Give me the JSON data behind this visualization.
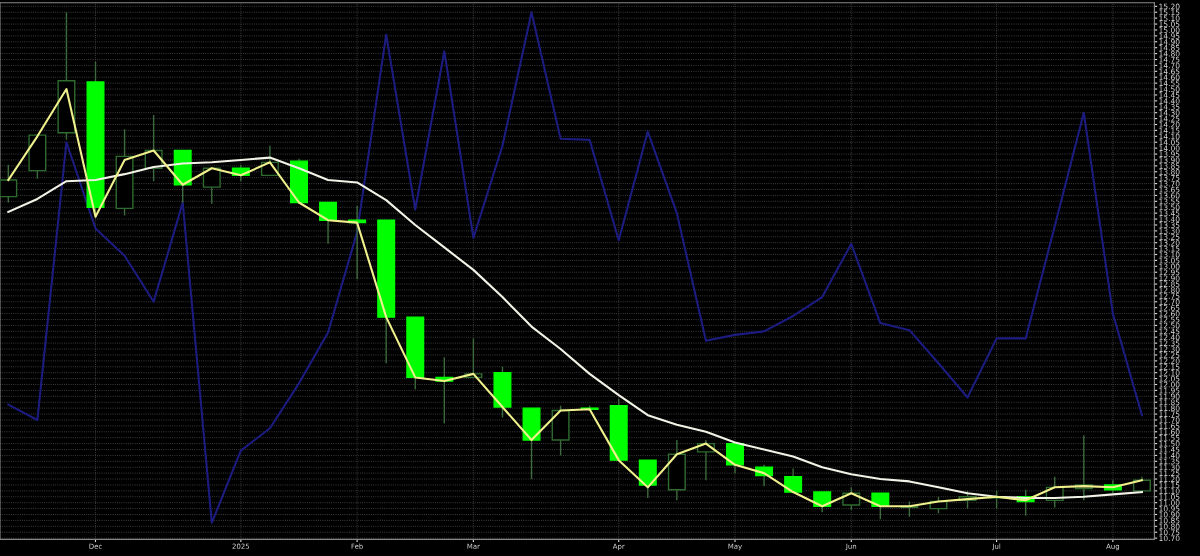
{
  "chart_data": {
    "type": "candlestick",
    "x": [
      "2024-11-11",
      "2024-11-18",
      "2024-11-25",
      "2024-12-02",
      "2024-12-09",
      "2024-12-16",
      "2024-12-23",
      "2024-12-30",
      "2025-01-06",
      "2025-01-13",
      "2025-01-20",
      "2025-01-27",
      "2025-02-03",
      "2025-02-10",
      "2025-02-17",
      "2025-02-24",
      "2025-03-03",
      "2025-03-10",
      "2025-03-17",
      "2025-03-24",
      "2025-03-31",
      "2025-04-07",
      "2025-04-14",
      "2025-04-21",
      "2025-04-28",
      "2025-05-05",
      "2025-05-12",
      "2025-05-19",
      "2025-05-26",
      "2025-06-02",
      "2025-06-09",
      "2025-06-16",
      "2025-06-23",
      "2025-06-30",
      "2025-07-07",
      "2025-07-14",
      "2025-07-21",
      "2025-07-28",
      "2025-08-04",
      "2025-08-11"
    ],
    "ohlc": [
      [
        13.59,
        13.86,
        13.54,
        13.73
      ],
      [
        13.81,
        14.12,
        13.74,
        14.11
      ],
      [
        14.13,
        15.15,
        14.07,
        14.57
      ],
      [
        14.56,
        14.73,
        13.41,
        13.5
      ],
      [
        13.49,
        14.16,
        13.43,
        13.93
      ],
      [
        13.83,
        14.28,
        13.72,
        13.98
      ],
      [
        13.98,
        13.98,
        13.54,
        13.69
      ],
      [
        13.67,
        13.84,
        13.53,
        13.83
      ],
      [
        13.83,
        13.86,
        13.72,
        13.77
      ],
      [
        13.77,
        14.02,
        13.77,
        13.88
      ],
      [
        13.89,
        13.91,
        13.53,
        13.54
      ],
      [
        13.54,
        13.54,
        13.19,
        13.39
      ],
      [
        13.39,
        13.51,
        12.89,
        13.37
      ],
      [
        13.39,
        13.39,
        12.18,
        12.57
      ],
      [
        12.57,
        12.57,
        11.96,
        12.06
      ],
      [
        12.06,
        12.23,
        11.67,
        12.03
      ],
      [
        12.06,
        12.39,
        12.06,
        12.09
      ],
      [
        12.1,
        12.15,
        11.72,
        11.81
      ],
      [
        11.8,
        11.8,
        11.2,
        11.53
      ],
      [
        11.53,
        11.82,
        11.4,
        11.78
      ],
      [
        11.8,
        11.82,
        11.78,
        11.79
      ],
      [
        11.82,
        11.88,
        11.36,
        11.36
      ],
      [
        11.36,
        11.36,
        11.04,
        11.15
      ],
      [
        11.11,
        11.53,
        11.02,
        11.41
      ],
      [
        11.43,
        11.53,
        11.19,
        11.5
      ],
      [
        11.5,
        11.5,
        11.25,
        11.32
      ],
      [
        11.3,
        11.32,
        11.14,
        11.23
      ],
      [
        11.22,
        11.29,
        11.08,
        11.09
      ],
      [
        11.09,
        11.09,
        10.92,
        10.97
      ],
      [
        10.98,
        11.13,
        10.94,
        11.08
      ],
      [
        11.08,
        11.08,
        10.86,
        10.97
      ],
      [
        10.96,
        11.01,
        10.88,
        10.97
      ],
      [
        10.95,
        11.05,
        10.91,
        11.01
      ],
      [
        11.02,
        11.1,
        10.95,
        11.05
      ],
      [
        11.04,
        11.1,
        10.95,
        11.05
      ],
      [
        11.05,
        11.11,
        10.89,
        11.01
      ],
      [
        11.02,
        11.22,
        10.96,
        11.13
      ],
      [
        11.12,
        11.57,
        11.02,
        11.15
      ],
      [
        11.15,
        11.19,
        11.08,
        11.11
      ],
      [
        11.1,
        11.22,
        11.08,
        11.19
      ]
    ],
    "colors": [
      "#2f6b2f",
      "#2f6b2f",
      "#2f6b2f",
      "#00ff00",
      "#2f6b2f",
      "#2f6b2f",
      "#00ff00",
      "#2f6b2f",
      "#00ff00",
      "#2f6b2f",
      "#00ff00",
      "#00ff00",
      "#00ff00",
      "#00ff00",
      "#00ff00",
      "#00ff00",
      "#2f6b2f",
      "#00ff00",
      "#00ff00",
      "#2f6b2f",
      "#00ff00",
      "#00ff00",
      "#00ff00",
      "#2f6b2f",
      "#2f6b2f",
      "#00ff00",
      "#00ff00",
      "#00ff00",
      "#00ff00",
      "#2f6b2f",
      "#00ff00",
      "#2f6b2f",
      "#2f6b2f",
      "#2f6b2f",
      "#2f6b2f",
      "#00ff00",
      "#2f6b2f",
      "#2f6b2f",
      "#00ff00",
      "#2f6b2f"
    ],
    "series": [
      {
        "type": "line",
        "color": "#1c1c80",
        "values": [
          11.83,
          11.7,
          14.05,
          13.32,
          13.09,
          12.7,
          13.54,
          10.83,
          11.44,
          11.63,
          12.01,
          12.44,
          13.29,
          14.96,
          13.48,
          14.82,
          13.24,
          14.02,
          15.15,
          14.08,
          14.07,
          13.22,
          14.14,
          13.45,
          12.37,
          12.42,
          12.45,
          12.58,
          12.74,
          13.19,
          12.52,
          12.46,
          12.18,
          11.89,
          12.39,
          12.39,
          13.34,
          14.3,
          12.6,
          11.74
        ]
      },
      {
        "type": "line",
        "color": "#f2f2e6",
        "values": [
          13.46,
          13.57,
          13.72,
          13.73,
          13.78,
          13.84,
          13.87,
          13.88,
          13.9,
          13.92,
          13.83,
          13.73,
          13.71,
          13.56,
          13.35,
          13.16,
          12.97,
          12.74,
          12.49,
          12.3,
          12.09,
          11.91,
          11.74,
          11.66,
          11.6,
          11.51,
          11.45,
          11.39,
          11.3,
          11.24,
          11.2,
          11.18,
          11.13,
          11.08,
          11.05,
          11.04,
          11.04,
          11.05,
          11.07,
          11.09
        ]
      },
      {
        "type": "line",
        "color": "#f0f08c",
        "values": [
          13.73,
          14.1,
          14.5,
          13.42,
          13.9,
          13.98,
          13.69,
          13.83,
          13.77,
          13.88,
          13.54,
          13.39,
          13.37,
          12.57,
          12.06,
          12.03,
          12.09,
          11.81,
          11.53,
          11.78,
          11.79,
          11.36,
          11.13,
          11.41,
          11.5,
          11.32,
          11.25,
          11.09,
          10.97,
          11.08,
          10.97,
          10.97,
          11.01,
          11.03,
          11.05,
          11.02,
          11.13,
          11.14,
          11.13,
          11.19
        ]
      }
    ],
    "xlim": [
      "2024-11-09",
      "2025-08-14"
    ],
    "xticks": [
      {
        "value": "2024-12-02",
        "label": "Dec"
      },
      {
        "value": "2025-01-06",
        "label": "2025"
      },
      {
        "value": "2025-02-03",
        "label": "Feb"
      },
      {
        "value": "2025-03-03",
        "label": "Mar"
      },
      {
        "value": "2025-04-07",
        "label": "Apr"
      },
      {
        "value": "2025-05-05",
        "label": "May"
      },
      {
        "value": "2025-06-02",
        "label": "Jun"
      },
      {
        "value": "2025-07-07",
        "label": "Jul"
      },
      {
        "value": "2025-08-04",
        "label": "Aug"
      }
    ],
    "ylim": [
      10.69,
      15.23
    ],
    "yticks": [
      {
        "value": 10.7,
        "label": "10.70"
      },
      {
        "value": 10.75,
        "label": "10.75"
      },
      {
        "value": 10.8,
        "label": "10.80"
      },
      {
        "value": 10.85,
        "label": "10.85"
      },
      {
        "value": 10.9,
        "label": "10.90"
      },
      {
        "value": 10.95,
        "label": "10.95"
      },
      {
        "value": 11.0,
        "label": "11.00"
      },
      {
        "value": 11.05,
        "label": "11.05"
      },
      {
        "value": 11.1,
        "label": "11.10"
      },
      {
        "value": 11.15,
        "label": "11.15"
      },
      {
        "value": 11.2,
        "label": "11.20"
      },
      {
        "value": 11.25,
        "label": "11.25"
      },
      {
        "value": 11.3,
        "label": "11.30"
      },
      {
        "value": 11.35,
        "label": "11.35"
      },
      {
        "value": 11.4,
        "label": "11.40"
      },
      {
        "value": 11.45,
        "label": "11.45"
      },
      {
        "value": 11.5,
        "label": "11.50"
      },
      {
        "value": 11.55,
        "label": "11.55"
      },
      {
        "value": 11.6,
        "label": "11.60"
      },
      {
        "value": 11.65,
        "label": "11.65"
      },
      {
        "value": 11.7,
        "label": "11.70"
      },
      {
        "value": 11.75,
        "label": "11.75"
      },
      {
        "value": 11.8,
        "label": "11.80"
      },
      {
        "value": 11.85,
        "label": "11.85"
      },
      {
        "value": 11.9,
        "label": "11.90"
      },
      {
        "value": 11.95,
        "label": "11.95"
      },
      {
        "value": 12.0,
        "label": "12.00"
      },
      {
        "value": 12.05,
        "label": "12.05"
      },
      {
        "value": 12.1,
        "label": "12.10"
      },
      {
        "value": 12.15,
        "label": "12.15"
      },
      {
        "value": 12.2,
        "label": "12.20"
      },
      {
        "value": 12.25,
        "label": "12.25"
      },
      {
        "value": 12.3,
        "label": "12.30"
      },
      {
        "value": 12.35,
        "label": "12.35"
      },
      {
        "value": 12.4,
        "label": "12.40"
      },
      {
        "value": 12.45,
        "label": "12.45"
      },
      {
        "value": 12.5,
        "label": "12.50"
      },
      {
        "value": 12.55,
        "label": "12.55"
      },
      {
        "value": 12.6,
        "label": "12.60"
      },
      {
        "value": 12.65,
        "label": "12.65"
      },
      {
        "value": 12.7,
        "label": "12.70"
      },
      {
        "value": 12.75,
        "label": "12.75"
      },
      {
        "value": 12.8,
        "label": "12.80"
      },
      {
        "value": 12.85,
        "label": "12.85"
      },
      {
        "value": 12.9,
        "label": "12.90"
      },
      {
        "value": 12.95,
        "label": "12.95"
      },
      {
        "value": 13.0,
        "label": "13.00"
      },
      {
        "value": 13.05,
        "label": "13.05"
      },
      {
        "value": 13.1,
        "label": "13.10"
      },
      {
        "value": 13.15,
        "label": "13.15"
      },
      {
        "value": 13.2,
        "label": "13.20"
      },
      {
        "value": 13.25,
        "label": "13.25"
      },
      {
        "value": 13.3,
        "label": "13.30"
      },
      {
        "value": 13.35,
        "label": "13.35"
      },
      {
        "value": 13.4,
        "label": "13.40"
      },
      {
        "value": 13.45,
        "label": "13.45"
      },
      {
        "value": 13.5,
        "label": "13.50"
      },
      {
        "value": 13.55,
        "label": "13.55"
      },
      {
        "value": 13.6,
        "label": "13.60"
      },
      {
        "value": 13.65,
        "label": "13.65"
      },
      {
        "value": 13.7,
        "label": "13.70"
      },
      {
        "value": 13.75,
        "label": "13.75"
      },
      {
        "value": 13.8,
        "label": "13.80"
      },
      {
        "value": 13.85,
        "label": "13.85"
      },
      {
        "value": 13.9,
        "label": "13.90"
      },
      {
        "value": 13.95,
        "label": "13.95"
      },
      {
        "value": 14.0,
        "label": "14.00"
      },
      {
        "value": 14.05,
        "label": "14.05"
      },
      {
        "value": 14.1,
        "label": "14.10"
      },
      {
        "value": 14.15,
        "label": "14.15"
      },
      {
        "value": 14.2,
        "label": "14.20"
      },
      {
        "value": 14.25,
        "label": "14.25"
      },
      {
        "value": 14.3,
        "label": "14.30"
      },
      {
        "value": 14.35,
        "label": "14.35"
      },
      {
        "value": 14.4,
        "label": "14.40"
      },
      {
        "value": 14.45,
        "label": "14.45"
      },
      {
        "value": 14.5,
        "label": "14.50"
      },
      {
        "value": 14.55,
        "label": "14.55"
      },
      {
        "value": 14.6,
        "label": "14.60"
      },
      {
        "value": 14.65,
        "label": "14.65"
      },
      {
        "value": 14.7,
        "label": "14.70"
      },
      {
        "value": 14.75,
        "label": "14.75"
      },
      {
        "value": 14.8,
        "label": "14.80"
      },
      {
        "value": 14.85,
        "label": "14.85"
      },
      {
        "value": 14.9,
        "label": "14.90"
      },
      {
        "value": 14.95,
        "label": "14.95"
      },
      {
        "value": 15.0,
        "label": "15.00"
      },
      {
        "value": 15.05,
        "label": "15.05"
      },
      {
        "value": 15.1,
        "label": "15.10"
      },
      {
        "value": 15.15,
        "label": "15.15"
      },
      {
        "value": 15.2,
        "label": "15.20"
      }
    ],
    "grid": true
  }
}
